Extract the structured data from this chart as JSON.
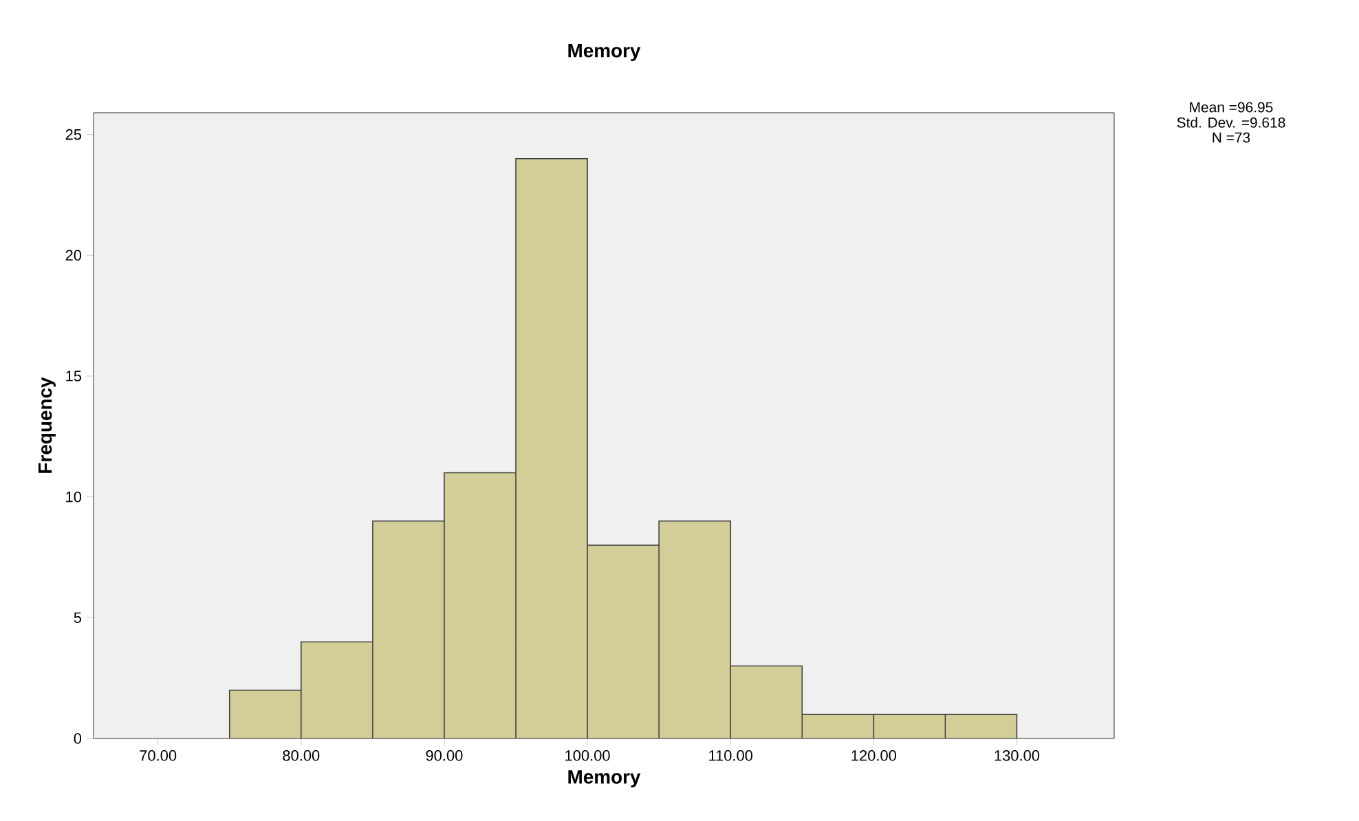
{
  "chart_data": {
    "type": "histogram",
    "title": "Memory",
    "xlabel": "Memory",
    "ylabel": "Frequency",
    "bins": [
      75,
      80,
      85,
      90,
      95,
      100,
      105,
      110,
      115,
      120,
      125,
      130
    ],
    "values": [
      2,
      4,
      9,
      11,
      24,
      8,
      9,
      3,
      1,
      1,
      1
    ],
    "color": "#d3ce97",
    "xlim": [
      65.5,
      136.8
    ],
    "ylim": [
      0,
      25.9
    ],
    "xticks": [
      {
        "value": 70,
        "label": "70.00"
      },
      {
        "value": 80,
        "label": "80.00"
      },
      {
        "value": 90,
        "label": "90.00"
      },
      {
        "value": 100,
        "label": "100.00"
      },
      {
        "value": 110,
        "label": "110.00"
      },
      {
        "value": 120,
        "label": "120.00"
      },
      {
        "value": 130,
        "label": "130.00"
      }
    ],
    "yticks": [
      0,
      5,
      10,
      15,
      20,
      25
    ],
    "grid": false,
    "annotations": [
      "Mean =96.95",
      "Std. Dev. =9.618",
      "N =73"
    ]
  }
}
